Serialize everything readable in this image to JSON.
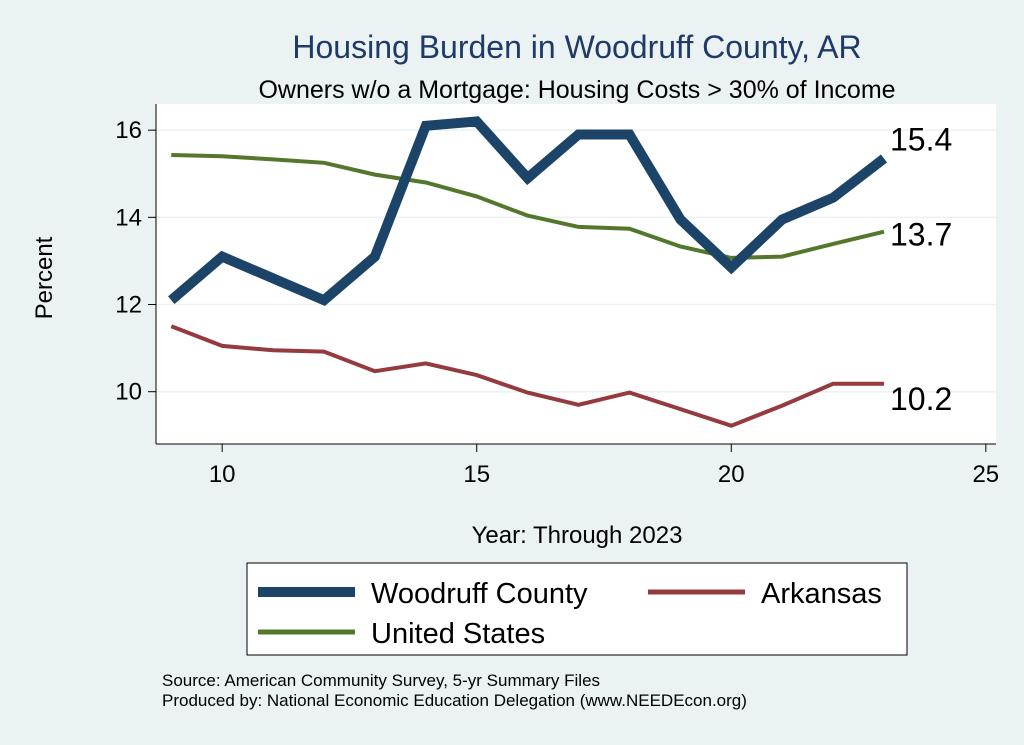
{
  "colors": {
    "background": "#eaf2f3",
    "plot_background": "#ffffff",
    "grid": "#eaf2f3",
    "woodruff": "#1b4468",
    "arkansas": "#953a3f",
    "us": "#55772c"
  },
  "chart_data": {
    "type": "line",
    "title": "Housing Burden in Woodruff County, AR",
    "subtitle": "Owners w/o a Mortgage: Housing Costs > 30% of Income",
    "xlabel": "Year: Through 2023",
    "ylabel": "Percent",
    "xlim": [
      8.7,
      25.2
    ],
    "ylim": [
      8.8,
      16.6
    ],
    "xticks": [
      10,
      15,
      20,
      25
    ],
    "yticks": [
      10,
      12,
      14,
      16
    ],
    "grid": true,
    "x": [
      9,
      10,
      11,
      12,
      13,
      14,
      15,
      16,
      17,
      18,
      19,
      20,
      21,
      22,
      23
    ],
    "series": [
      {
        "name": "Woodruff County",
        "color": "#1b4468",
        "values": [
          12.1,
          13.1,
          12.6,
          12.1,
          13.1,
          16.1,
          16.2,
          14.9,
          15.9,
          15.9,
          13.95,
          12.85,
          13.95,
          14.45,
          15.35
        ]
      },
      {
        "name": "Arkansas",
        "color": "#953a3f",
        "values": [
          11.5,
          11.05,
          10.95,
          10.92,
          10.47,
          10.65,
          10.38,
          9.98,
          9.7,
          9.98,
          9.6,
          9.22,
          9.68,
          10.18,
          10.18
        ]
      },
      {
        "name": "United States",
        "color": "#55772c",
        "values": [
          15.43,
          15.4,
          15.33,
          15.25,
          14.98,
          14.8,
          14.48,
          14.04,
          13.78,
          13.74,
          13.33,
          13.07,
          13.1,
          13.39,
          13.67
        ]
      }
    ],
    "end_labels": [
      "15.4",
      "13.7",
      "10.2"
    ],
    "legend": {
      "placement": "bottom",
      "items": [
        "Woodruff County",
        "Arkansas",
        "United States"
      ]
    },
    "notes": [
      "Source: American Community Survey, 5-yr Summary Files",
      "Produced by: National Economic Education Delegation (www.NEEDEcon.org)"
    ]
  }
}
